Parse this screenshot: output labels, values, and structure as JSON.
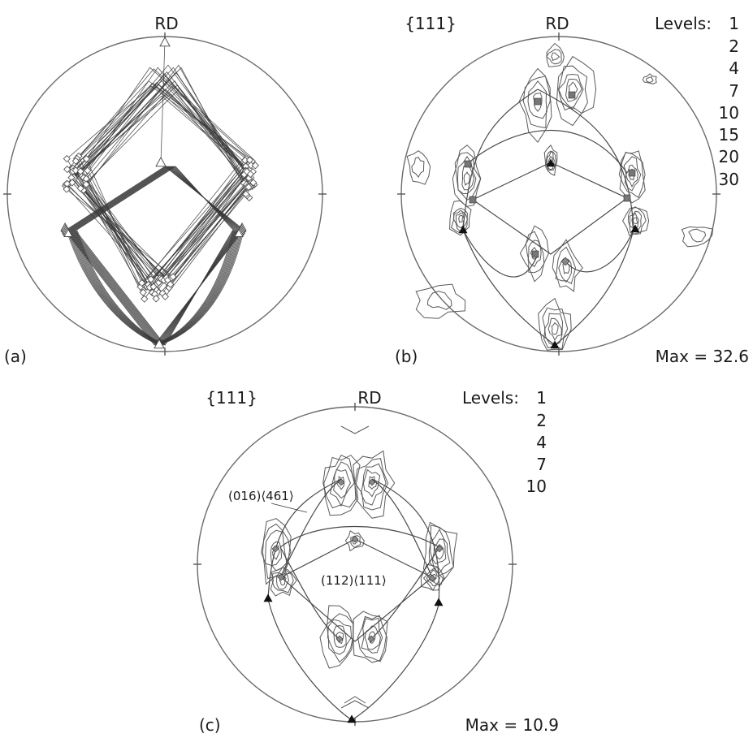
{
  "panel_a": {
    "tag": "(a)",
    "rd_label": "RD"
  },
  "panel_b": {
    "tag": "(b)",
    "plane_label": "{111}",
    "rd_label": "RD",
    "levels_title": "Levels:",
    "levels": [
      "1",
      "2",
      "4",
      "7",
      "10",
      "15",
      "20",
      "30"
    ],
    "max_label": "Max = 32.6"
  },
  "panel_c": {
    "tag": "(c)",
    "plane_label": "{111}",
    "rd_label": "RD",
    "levels_title": "Levels:",
    "levels": [
      "1",
      "2",
      "4",
      "7",
      "10"
    ],
    "max_label": "Max = 10.9",
    "annotation_outer": "(016)⟨461⟩",
    "annotation_inner": "(112)⟨111⟩"
  }
}
